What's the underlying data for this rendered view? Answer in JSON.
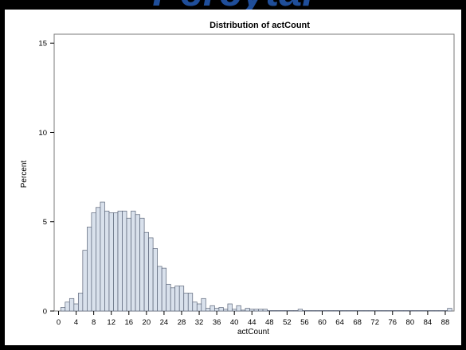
{
  "header": {
    "cut_text": "Percytal"
  },
  "chart_data": {
    "type": "bar",
    "title": "Distribution of actCount",
    "xlabel": "actCount",
    "ylabel": "Percent",
    "xlim": [
      0,
      90
    ],
    "ylim": [
      0,
      15
    ],
    "grid": false,
    "bar_fill": "#d9e1ec",
    "bar_stroke": "#5a6478",
    "x_ticks": [
      0,
      4,
      8,
      12,
      16,
      20,
      24,
      28,
      32,
      36,
      40,
      44,
      48,
      52,
      56,
      60,
      64,
      68,
      72,
      76,
      80,
      84,
      88
    ],
    "y_ticks": [
      0,
      5,
      10,
      15
    ],
    "x": [
      1,
      2,
      3,
      4,
      5,
      6,
      7,
      8,
      9,
      10,
      11,
      12,
      13,
      14,
      15,
      16,
      17,
      18,
      19,
      20,
      21,
      22,
      23,
      24,
      25,
      26,
      27,
      28,
      29,
      30,
      31,
      32,
      33,
      34,
      35,
      36,
      37,
      38,
      39,
      40,
      41,
      42,
      43,
      44,
      45,
      46,
      47,
      48,
      49,
      50,
      51,
      52,
      53,
      54,
      55,
      56,
      57,
      58,
      59,
      60,
      61,
      62,
      63,
      64,
      65,
      66,
      67,
      68,
      69,
      70,
      71,
      72,
      73,
      74,
      75,
      76,
      77,
      78,
      79,
      80,
      81,
      82,
      83,
      84,
      85,
      86,
      87,
      88,
      89
    ],
    "values": [
      0.2,
      0.5,
      0.7,
      0.4,
      1.0,
      3.4,
      4.7,
      5.5,
      5.8,
      6.1,
      5.6,
      5.5,
      5.5,
      5.6,
      5.6,
      5.2,
      5.6,
      5.4,
      5.2,
      4.4,
      4.1,
      3.5,
      2.5,
      2.4,
      1.5,
      1.3,
      1.4,
      1.4,
      1.0,
      1.0,
      0.5,
      0.4,
      0.7,
      0.15,
      0.3,
      0.15,
      0.2,
      0.1,
      0.4,
      0.1,
      0.3,
      0.05,
      0.15,
      0.1,
      0.1,
      0.1,
      0.1,
      0.02,
      0.02,
      0.02,
      0.02,
      0.02,
      0.02,
      0.02,
      0.1,
      0.02,
      0.02,
      0.02,
      0.02,
      0.02,
      0.02,
      0.02,
      0.02,
      0.02,
      0.02,
      0.02,
      0.02,
      0.02,
      0.02,
      0.02,
      0.02,
      0.02,
      0.02,
      0.02,
      0.02,
      0.02,
      0.02,
      0.02,
      0.02,
      0.02,
      0.02,
      0.02,
      0.02,
      0.02,
      0.02,
      0.02,
      0.02,
      0.02,
      0.15
    ]
  }
}
